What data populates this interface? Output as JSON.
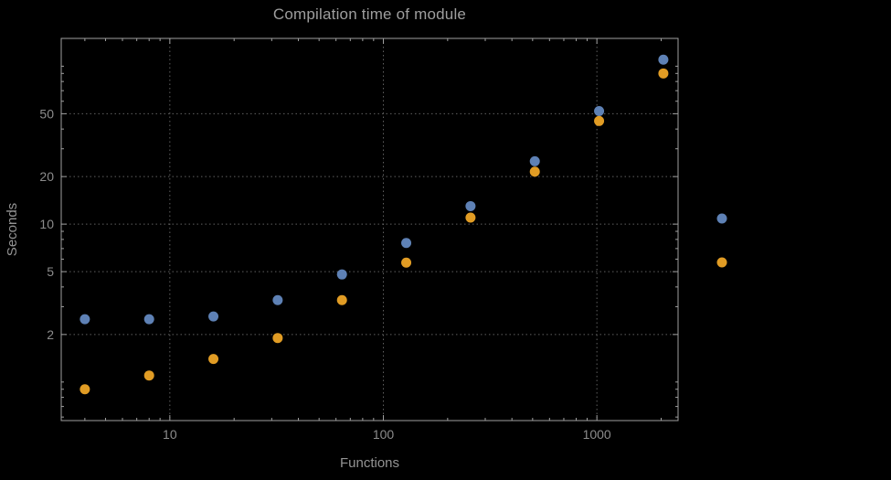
{
  "title": "Compilation time of module",
  "colors": {
    "background": "#000000",
    "frame": "#a0a0a0",
    "grid": "#606060",
    "title_text": "#9e9e9e",
    "axis_label_text": "#949494",
    "tick_text": "#8c8c8c",
    "series_blue": "#5e81b5",
    "series_orange": "#e19c24"
  },
  "chart_data": {
    "type": "scatter",
    "title": "Compilation time of module",
    "xlabel": "Functions",
    "ylabel": "Seconds",
    "xscale": "log",
    "yscale": "log",
    "xlim": [
      3.1,
      2400
    ],
    "ylim": [
      0.57,
      150
    ],
    "x_ticks": [
      10,
      100,
      1000
    ],
    "y_ticks": [
      2,
      5,
      10,
      20,
      50
    ],
    "grid": true,
    "x": [
      4,
      8,
      16,
      32,
      64,
      128,
      256,
      512,
      1024,
      2048
    ],
    "series": [
      {
        "name": "blue",
        "color": "#5e81b5",
        "values": [
          2.5,
          2.5,
          2.6,
          3.3,
          4.8,
          7.6,
          13,
          25,
          52,
          110
        ]
      },
      {
        "name": "orange",
        "color": "#e19c24",
        "values": [
          0.9,
          1.1,
          1.4,
          1.9,
          3.3,
          5.7,
          11,
          21.5,
          45,
          90
        ]
      }
    ],
    "legend": {
      "position": "outside-right",
      "labels_visible": false
    }
  }
}
